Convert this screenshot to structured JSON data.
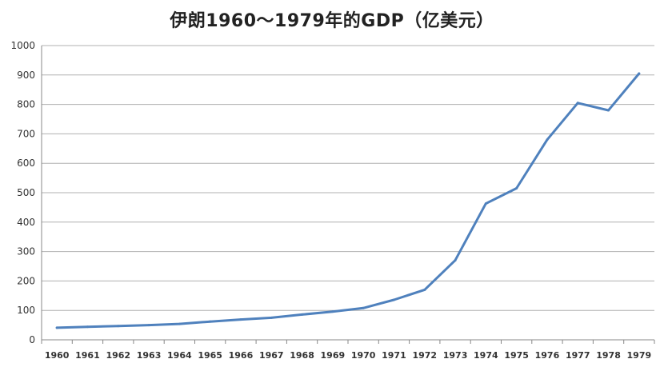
{
  "chart_data": {
    "type": "line",
    "title": "伊朗1960～1979年的GDP（亿美元）",
    "xlabel": "",
    "ylabel": "",
    "ylim": [
      0,
      1000
    ],
    "yticks": [
      0,
      100,
      200,
      300,
      400,
      500,
      600,
      700,
      800,
      900,
      1000
    ],
    "grid": true,
    "legend": "none",
    "line_color": "#4f81bd",
    "categories": [
      "1960",
      "1961",
      "1962",
      "1963",
      "1964",
      "1965",
      "1966",
      "1967",
      "1968",
      "1969",
      "1970",
      "1971",
      "1972",
      "1973",
      "1974",
      "1975",
      "1976",
      "1977",
      "1978",
      "1979"
    ],
    "series": [
      {
        "values": [
          41,
          44,
          47,
          50,
          54,
          62,
          69,
          75,
          86,
          96,
          108,
          136,
          170,
          270,
          463,
          515,
          680,
          805,
          780,
          905
        ]
      }
    ]
  }
}
